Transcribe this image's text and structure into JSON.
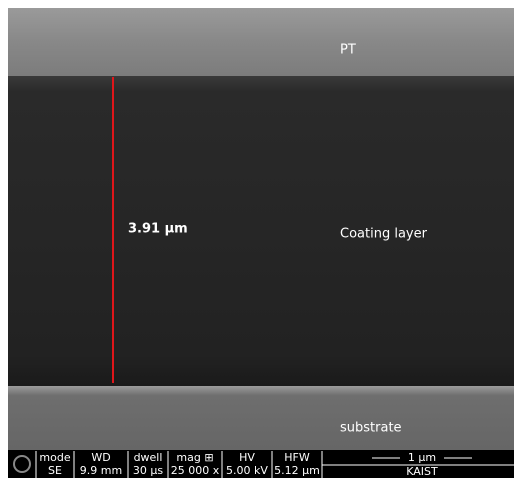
{
  "layers": {
    "top": "PT",
    "middle": "Coating layer",
    "bottom": "substrate"
  },
  "measurement": "3.91 µm",
  "info_bar": {
    "columns": [
      {
        "header": "mode",
        "value": "SE"
      },
      {
        "header": "WD",
        "value": "9.9 mm"
      },
      {
        "header": "dwell",
        "value": "30 µs"
      },
      {
        "header": "mag ⊞",
        "value": "25 000 x"
      },
      {
        "header": "HV",
        "value": "5.00 kV"
      },
      {
        "header": "HFW",
        "value": "5.12 µm"
      }
    ],
    "scale_bar": "1 µm",
    "institution": "KAIST"
  }
}
